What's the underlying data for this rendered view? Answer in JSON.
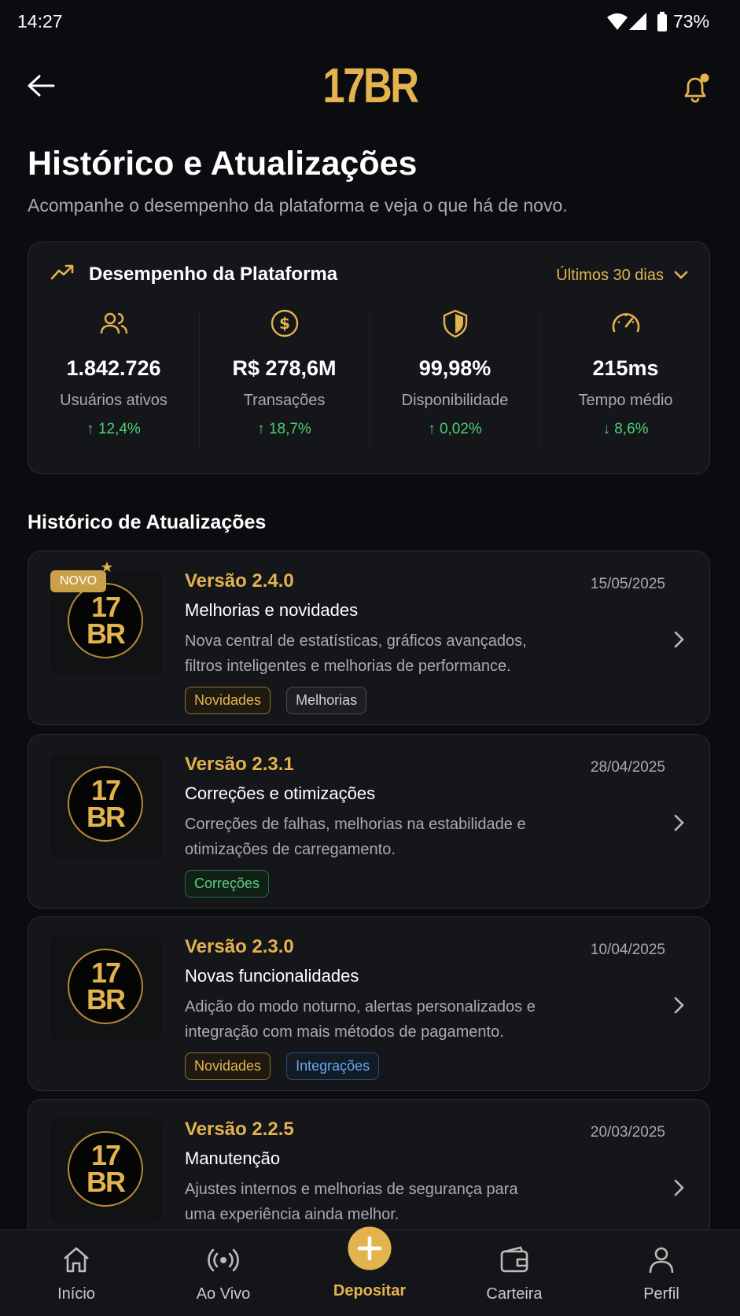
{
  "status_bar": {
    "time": "14:27",
    "battery": "73%"
  },
  "header": {
    "logo": "17BR"
  },
  "page": {
    "title": "Histórico e Atualizações",
    "subtitle": "Acompanhe o desempenho da plataforma e veja o que há de novo."
  },
  "performance": {
    "title": "Desempenho da Plataforma",
    "period": "Últimos 30 dias",
    "stats": [
      {
        "value": "1.842.726",
        "label": "Usuários ativos",
        "change": "↑ 12,4%"
      },
      {
        "value": "R$ 278,6M",
        "label": "Transações",
        "change": "↑ 18,7%"
      },
      {
        "value": "99,98%",
        "label": "Disponibilidade",
        "change": "↑ 0,02%"
      },
      {
        "value": "215ms",
        "label": "Tempo médio",
        "change": "↓ 8,6%"
      }
    ]
  },
  "updates": {
    "title": "Histórico de Atualizações",
    "logo": [
      "17",
      "BR"
    ],
    "items": [
      {
        "badge": "NOVO",
        "version": "Versão 2.4.0",
        "date": "15/05/2025",
        "title": "Melhorias e novidades",
        "description": "Nova central de estatísticas, gráficos avançados, filtros inteligentes e melhorias de performance.",
        "tags": [
          {
            "label": "Novidades",
            "style": "gold"
          },
          {
            "label": "Melhorias",
            "style": "gray"
          }
        ]
      },
      {
        "version": "Versão 2.3.1",
        "date": "28/04/2025",
        "title": "Correções e otimizações",
        "description": "Correções de falhas, melhorias na estabilidade e otimizações de carregamento.",
        "tags": [
          {
            "label": "Correções",
            "style": "green"
          }
        ]
      },
      {
        "version": "Versão 2.3.0",
        "date": "10/04/2025",
        "title": "Novas funcionalidades",
        "description": "Adição do modo noturno, alertas personalizados e integração com mais métodos de pagamento.",
        "tags": [
          {
            "label": "Novidades",
            "style": "gold"
          },
          {
            "label": "Integrações",
            "style": "blue"
          }
        ]
      },
      {
        "version": "Versão 2.2.5",
        "date": "20/03/2025",
        "title": "Manutenção",
        "description": "Ajustes internos e melhorias de segurança para uma experiência ainda melhor.",
        "tags": []
      }
    ]
  },
  "nav": [
    {
      "label": "Início",
      "active": false
    },
    {
      "label": "Ao Vivo",
      "active": false
    },
    {
      "label": "Depositar",
      "active": true
    },
    {
      "label": "Carteira",
      "active": false
    },
    {
      "label": "Perfil",
      "active": false
    }
  ]
}
